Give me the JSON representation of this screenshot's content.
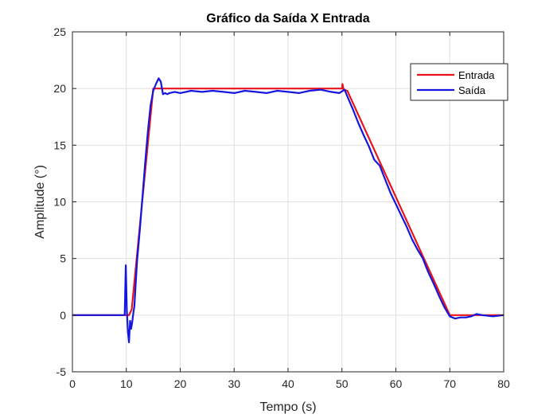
{
  "chart_data": {
    "type": "line",
    "title": "Gráfico da Saída X Entrada",
    "xlabel": "Tempo (s)",
    "ylabel": "Amplitude (°)",
    "xlim": [
      0,
      80
    ],
    "ylim": [
      -5,
      25
    ],
    "xticks": [
      0,
      10,
      20,
      30,
      40,
      50,
      60,
      70,
      80
    ],
    "yticks": [
      -5,
      0,
      5,
      10,
      15,
      20,
      25
    ],
    "grid": true,
    "legend_position": "top-right",
    "series": [
      {
        "name": "Entrada",
        "color": "#e8141a",
        "x": [
          0,
          10.5,
          11,
          15,
          50,
          50.1,
          50.3,
          51,
          70,
          80
        ],
        "y": [
          0,
          0,
          0.5,
          20,
          20,
          20.4,
          19.9,
          19.8,
          0,
          0
        ]
      },
      {
        "name": "Saída",
        "color": "#1515e0",
        "x": [
          0,
          9.7,
          9.9,
          10.1,
          10.3,
          10.5,
          10.7,
          10.9,
          11.1,
          11.3,
          11.5,
          11.7,
          12.0,
          12.5,
          13.0,
          13.5,
          14.0,
          14.5,
          15.0,
          15.5,
          16.0,
          16.4,
          16.8,
          17.2,
          17.6,
          18.0,
          19,
          20,
          22,
          24,
          26,
          28,
          30,
          32,
          34,
          36,
          38,
          40,
          42,
          44,
          46,
          48,
          49.5,
          50.5,
          51,
          52,
          53,
          54,
          55,
          56,
          57,
          58,
          59,
          60,
          61,
          62,
          63,
          64,
          65,
          66,
          67,
          68,
          69,
          70,
          71,
          72,
          73,
          74,
          75,
          76,
          78,
          80
        ],
        "y": [
          0,
          0,
          4.4,
          0.4,
          -1.5,
          -2.4,
          -0.5,
          -1.2,
          -0.6,
          0.2,
          0.8,
          2.5,
          4.8,
          7.5,
          10.5,
          13.5,
          16.2,
          18.5,
          19.8,
          20.4,
          20.9,
          20.6,
          19.5,
          19.6,
          19.5,
          19.6,
          19.7,
          19.6,
          19.8,
          19.7,
          19.8,
          19.7,
          19.6,
          19.8,
          19.7,
          19.6,
          19.8,
          19.7,
          19.6,
          19.8,
          19.9,
          19.7,
          19.6,
          19.9,
          19.3,
          18.2,
          17.0,
          15.9,
          14.9,
          13.7,
          13.2,
          12.0,
          10.8,
          9.8,
          8.8,
          7.8,
          6.7,
          5.8,
          5.0,
          3.8,
          2.8,
          1.7,
          0.7,
          -0.1,
          -0.3,
          -0.2,
          -0.2,
          -0.1,
          0.1,
          0,
          -0.1,
          0
        ]
      }
    ]
  }
}
